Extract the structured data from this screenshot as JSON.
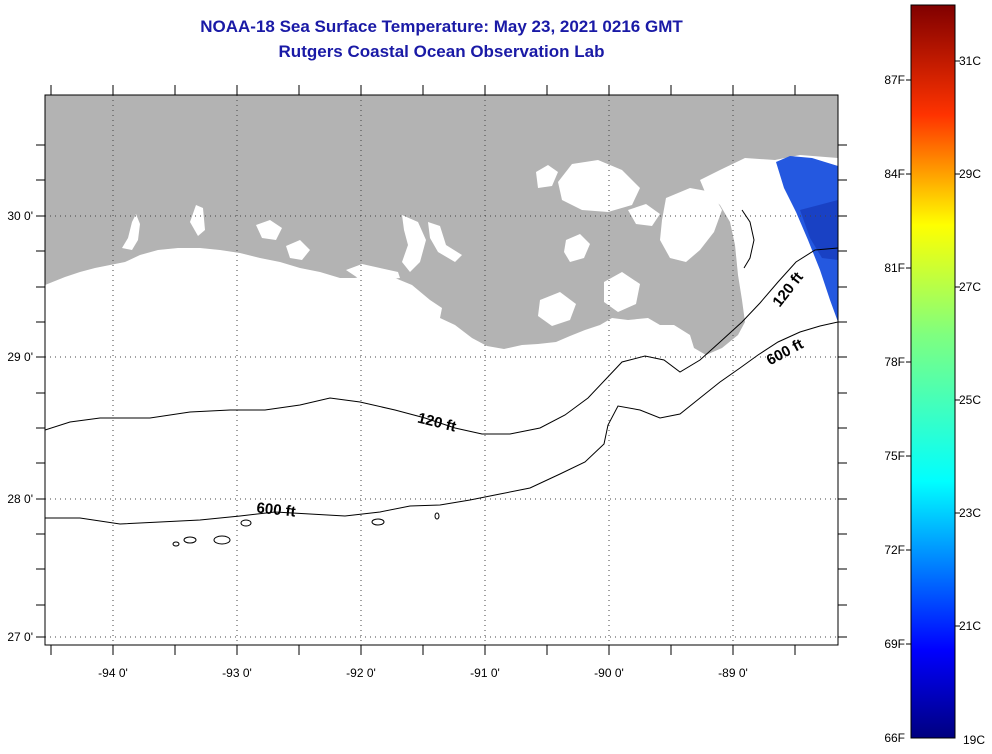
{
  "header": {
    "title_line1": "NOAA-18 Sea Surface Temperature:  May 23, 2021 0216 GMT",
    "title_line2": "Rutgers Coastal Ocean Observation Lab"
  },
  "map": {
    "lat_labels": [
      "30 0'",
      "29 0'",
      "28 0'",
      "27 0'"
    ],
    "lon_labels": [
      "-94 0'",
      "-93 0'",
      "-92 0'",
      "-91 0'",
      "-90 0'",
      "-89 0'"
    ],
    "contours": {
      "label_120_shelf": "120 ft",
      "label_120_east": "120 ft",
      "label_600_shelf": "600 ft",
      "label_600_east": "600 ft"
    },
    "colors": {
      "land": "#b3b3b3",
      "water": "#ffffff",
      "coastline": "#000000",
      "grid": "#000000"
    }
  },
  "colorbar": {
    "fahrenheit_labels": [
      "87F",
      "84F",
      "81F",
      "78F",
      "75F",
      "72F",
      "69F",
      "66F"
    ],
    "celsius_labels": [
      "31C",
      "29C",
      "27C",
      "25C",
      "23C",
      "21C",
      "19C"
    ]
  }
}
